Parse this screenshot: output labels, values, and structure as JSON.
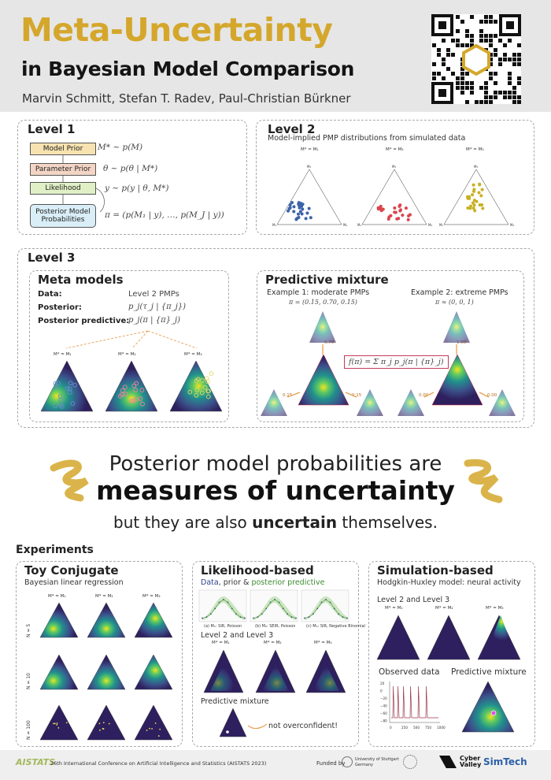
{
  "header": {
    "title_line1": "Meta-Uncertainty",
    "title_line2": "in Bayesian Model Comparison",
    "authors": "Marvin Schmitt, Stefan T. Radev, Paul-Christian Bürkner"
  },
  "level1": {
    "title": "Level 1",
    "nodes": [
      "Model Prior",
      "Parameter Prior",
      "Likelihood",
      "Posterior Model Probabilities"
    ],
    "equations": [
      "M* ~ p(M)",
      "θ ~ p(θ | M*)",
      "y ~ p(y | θ, M*)",
      "π = (p(M₁ | y), …, p(M_J | y))"
    ]
  },
  "level2": {
    "title": "Level 2",
    "subtitle": "Model-implied PMP distributions from simulated data",
    "captions": [
      "M* = M₁",
      "M* = M₂",
      "M* = M₃"
    ],
    "vertex_labels": [
      "M₁",
      "M₂",
      "M₃"
    ]
  },
  "level3": {
    "title": "Level 3",
    "meta_models": {
      "title": "Meta models",
      "rows": [
        {
          "label": "Data:",
          "value": "Level 2 PMPs"
        },
        {
          "label": "Posterior:",
          "value": "p_j(τ_j | {π_j})"
        },
        {
          "label": "Posterior predictive:",
          "value": "p_j(π | {π}_j)"
        }
      ],
      "captions": [
        "M* = M₁",
        "M* = M₂",
        "M* = M₃"
      ]
    },
    "predictive_mixture": {
      "title": "Predictive mixture",
      "example1": "Example 1: moderate PMPs",
      "example1_eq": "π = (0.15, 0.70, 0.15)",
      "example2": "Example 2: extreme PMPs",
      "example2_eq": "π ≈ (0, 0, 1)",
      "formula": "f(π) = Σ π_j p_j(π | {π}_j)",
      "weights1": [
        "0.15",
        "0.15",
        "0.70"
      ],
      "weights2": [
        "1.00",
        "0.00",
        "0.00"
      ]
    }
  },
  "message": {
    "line1": "Posterior model probabilities are",
    "line2": "measures of uncertainty",
    "line3_a": "but they are also ",
    "line3_b": "uncertain",
    "line3_c": " themselves."
  },
  "experiments": {
    "title": "Experiments",
    "toy": {
      "title": "Toy Conjugate",
      "subtitle": "Bayesian linear regression",
      "captions": [
        "M* = M₁",
        "M* = M₂",
        "M* = M₃"
      ],
      "rows": [
        "N = 5",
        "N = 10",
        "N = 100"
      ]
    },
    "likelihood": {
      "title": "Likelihood-based",
      "subtitle_a": "Data",
      "subtitle_b": ", prior & ",
      "subtitle_c": "posterior predictive",
      "plot_captions": [
        "(a) M₁: SIR, Poisson",
        "(b) M₂: SEIR, Poisson",
        "(c) M₃: SIR, Negative Binomial"
      ],
      "section2": "Level 2 and Level 3",
      "captions": [
        "M* = M₁",
        "M* = M₂",
        "M* = M₃"
      ],
      "section3": "Predictive mixture",
      "note": "not overconfident!"
    },
    "simulation": {
      "title": "Simulation-based",
      "subtitle": "Hodgkin-Huxley model: neural activity",
      "section2": "Level 2 and Level 3",
      "captions": [
        "M* = M₁",
        "M* = M₂",
        "M* = M₃"
      ],
      "observed": "Observed data",
      "mixture": "Predictive mixture",
      "xticks": [
        "0",
        "250",
        "500",
        "750",
        "1000"
      ],
      "yticks": [
        "20",
        "0",
        "−20",
        "−40",
        "−60",
        "−80"
      ]
    }
  },
  "footer": {
    "logo": "AISTATS",
    "conference": "26th International Conference on Artificial Intelligence and Statistics (AISTATS 2023)",
    "funded_by": "Funded by",
    "uni": "University of Stuttgart",
    "uni_country": "Germany",
    "cv": "Cyber Valley",
    "simtech": "SimTech"
  },
  "colors": {
    "gold": "#d4a72c",
    "blue": "#3b63a8",
    "red": "#d9454f",
    "olive": "#c8b021",
    "viridis_dark": "#3a2a6a"
  }
}
